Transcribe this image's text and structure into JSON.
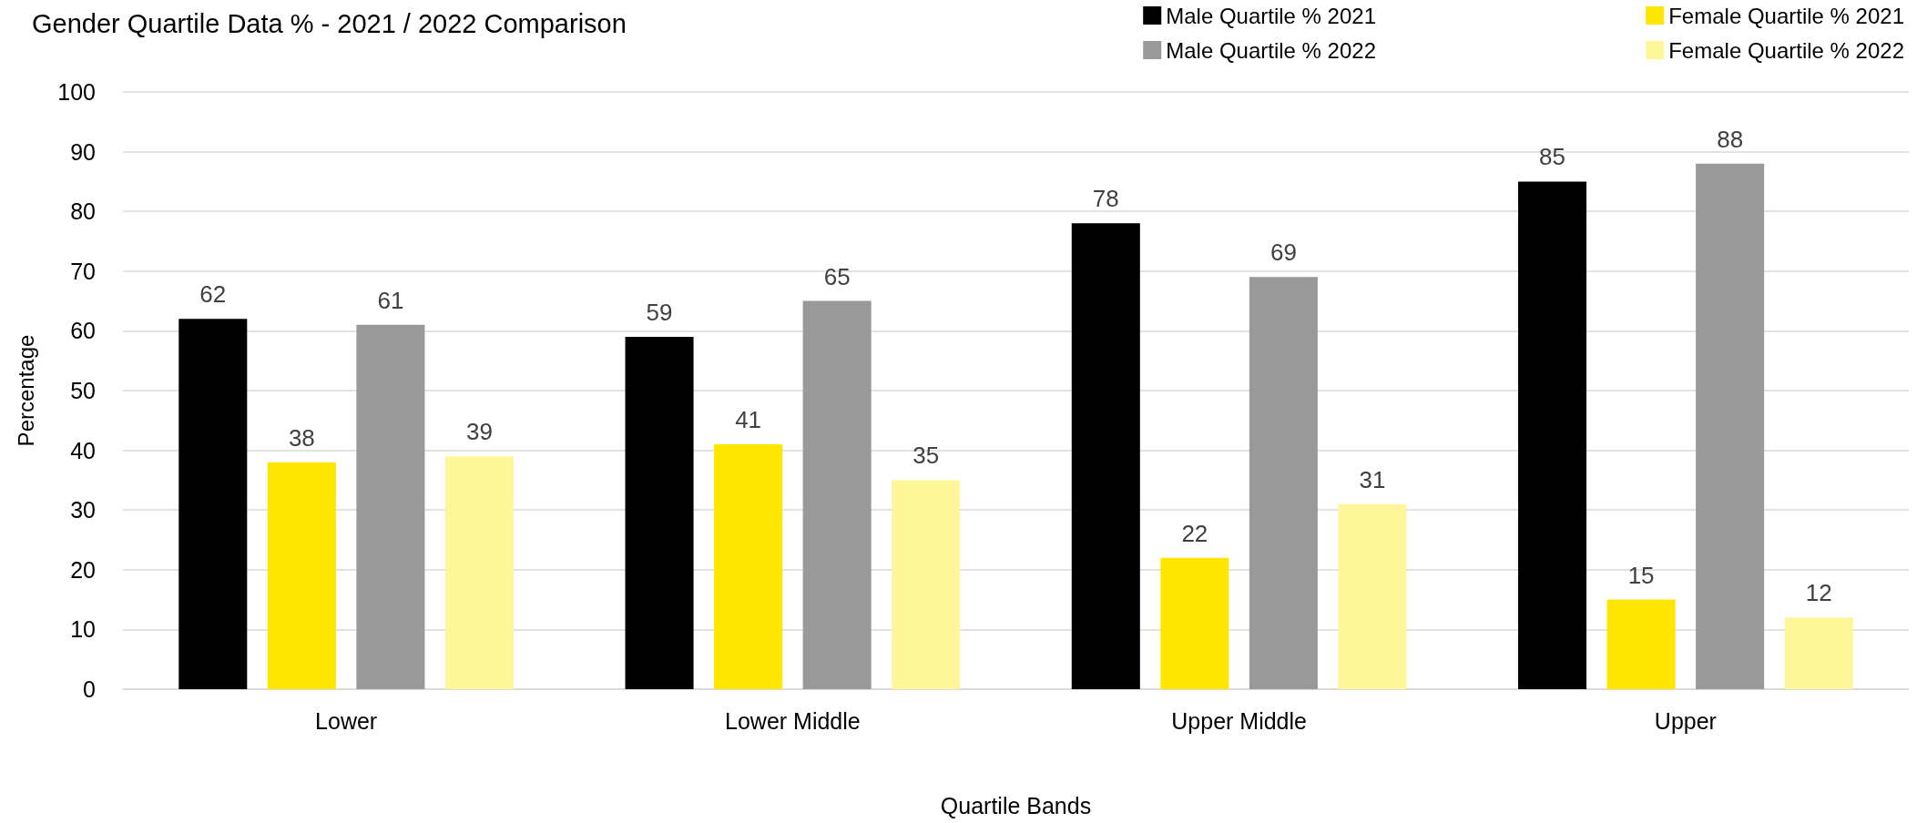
{
  "chart_data": {
    "type": "bar",
    "title": "Gender Quartile Data % - 2021 / 2022 Comparison",
    "xlabel": "Quartile Bands",
    "ylabel": "Percentage",
    "categories": [
      "Lower",
      "Lower Middle",
      "Upper Middle",
      "Upper"
    ],
    "series": [
      {
        "name": "Male Quartile % 2021",
        "color": "#000000",
        "values": [
          62,
          59,
          78,
          85
        ]
      },
      {
        "name": "Female Quartile % 2021",
        "color": "#ffe600",
        "values": [
          38,
          41,
          22,
          15
        ]
      },
      {
        "name": "Male Quartile % 2022",
        "color": "#999999",
        "values": [
          61,
          65,
          69,
          88
        ]
      },
      {
        "name": "Female Quartile % 2022",
        "color": "#fff699",
        "values": [
          39,
          35,
          31,
          12
        ]
      }
    ],
    "ylim": [
      0,
      100
    ],
    "yticks": [
      0,
      10,
      20,
      30,
      40,
      50,
      60,
      70,
      80,
      90,
      100
    ],
    "grid": "y",
    "legend": "top right",
    "data_labels": true
  }
}
